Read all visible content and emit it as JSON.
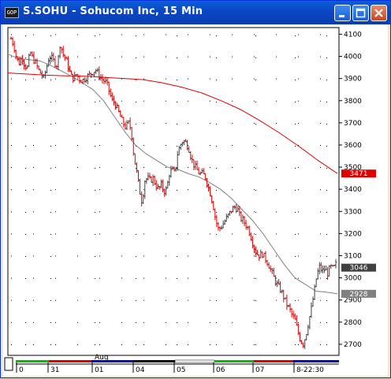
{
  "window": {
    "title": "S.SOHU - Sohucom Inc, 15 Min",
    "icon": "chart-app-icon"
  },
  "chart_data": {
    "type": "bar",
    "title": "",
    "y_ticks": [
      4100,
      4000,
      3900,
      3800,
      3700,
      3600,
      3500,
      3400,
      3300,
      3200,
      3100,
      3000,
      2900,
      2800,
      2700
    ],
    "ylim": [
      2650,
      4130
    ],
    "markers": [
      {
        "name": "ma-long",
        "value": "3471",
        "num": 3471,
        "color": "#e00000"
      },
      {
        "name": "last-price",
        "value": "3046",
        "num": 3046,
        "color": "#404040"
      },
      {
        "name": "ma-short",
        "value": "2928",
        "num": 2928,
        "color": "#808080"
      }
    ],
    "x_labels": [
      "0",
      "31",
      "01",
      "04",
      "05",
      "06",
      "07",
      "8-22:30"
    ],
    "month_label": "Aug",
    "colors": {
      "down": "#e00000",
      "up": "#404040",
      "ma_long": "#e00000",
      "ma_short": "#808080"
    },
    "price_path": [
      4080,
      4050,
      3990,
      3970,
      4000,
      3960,
      3950,
      4020,
      3990,
      3970,
      3940,
      3920,
      3900,
      3950,
      4000,
      3990,
      3970,
      3960,
      4060,
      4010,
      3990,
      3950,
      3910,
      3900,
      3920,
      3900,
      3890,
      3900,
      3910,
      3920,
      3930,
      3940,
      3920,
      3900,
      3890,
      3880,
      3840,
      3800,
      3790,
      3760,
      3730,
      3700,
      3680,
      3700,
      3670,
      3550,
      3480,
      3400,
      3340,
      3440,
      3450,
      3440,
      3450,
      3420,
      3400,
      3420,
      3390,
      3400,
      3470,
      3490,
      3470,
      3560,
      3600,
      3620,
      3610,
      3590,
      3540,
      3510,
      3490,
      3470,
      3470,
      3460,
      3420,
      3380,
      3330,
      3260,
      3220,
      3230,
      3250,
      3270,
      3290,
      3310,
      3320,
      3310,
      3270,
      3260,
      3240,
      3220,
      3180,
      3140,
      3110,
      3100,
      3110,
      3090,
      3070,
      3040,
      3010,
      2980,
      2960,
      2940,
      2910,
      2880,
      2860,
      2830,
      2810,
      2760,
      2720,
      2700,
      2740,
      2800,
      2860,
      2930,
      3010,
      3050,
      3030,
      3040,
      3020,
      3050,
      3040,
      3060
    ],
    "ma_long": [
      3925,
      3920,
      3915,
      3912,
      3910,
      3905,
      3900,
      3895,
      3880,
      3860,
      3835,
      3800,
      3760,
      3710,
      3655,
      3595,
      3530,
      3471
    ],
    "ma_short": [
      4010,
      3990,
      3985,
      3980,
      3960,
      3935,
      3910,
      3880,
      3850,
      3800,
      3730,
      3660,
      3600,
      3560,
      3530,
      3500,
      3490,
      3470,
      3455,
      3430,
      3400,
      3360,
      3310,
      3260,
      3200,
      3130,
      3060,
      3000,
      2970,
      2940,
      2935,
      2928
    ]
  }
}
